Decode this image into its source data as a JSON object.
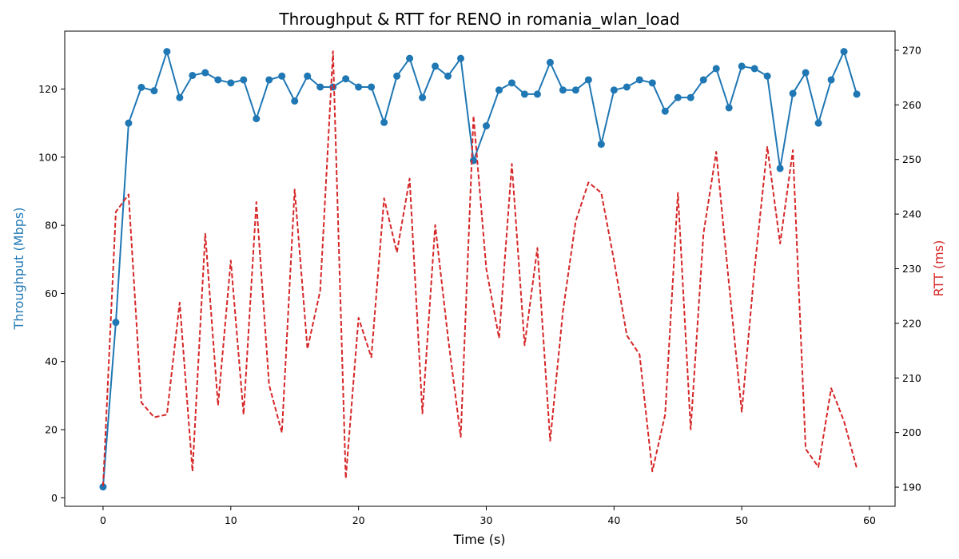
{
  "chart_data": {
    "type": "line",
    "title": "Throughput & RTT for RENO in romania_wlan_load",
    "xlabel": "Time (s)",
    "ylabel_left": "Throughput (Mbps)",
    "ylabel_right": "RTT (ms)",
    "xlim": [
      -3,
      62
    ],
    "ylim_left": [
      -2.5,
      137
    ],
    "ylim_right": [
      186.5,
      273.5
    ],
    "x_ticks": [
      0,
      10,
      20,
      30,
      40,
      50,
      60
    ],
    "y_ticks_left": [
      0,
      20,
      40,
      60,
      80,
      100,
      120
    ],
    "y_ticks_right": [
      190,
      200,
      210,
      220,
      230,
      240,
      250,
      260,
      270
    ],
    "grid": false,
    "colors": {
      "throughput": "#1f77b4",
      "rtt": "#d62728",
      "axis_label_left": "#1f77b4",
      "axis_label_right": "#d62728"
    },
    "x": [
      0,
      1,
      2,
      3,
      4,
      5,
      6,
      7,
      8,
      9,
      10,
      11,
      12,
      13,
      14,
      15,
      16,
      17,
      18,
      19,
      20,
      21,
      22,
      23,
      24,
      25,
      26,
      27,
      28,
      29,
      30,
      31,
      32,
      33,
      34,
      35,
      36,
      37,
      38,
      39,
      40,
      41,
      42,
      43,
      44,
      45,
      46,
      47,
      48,
      49,
      50,
      51,
      52,
      53,
      54,
      55,
      56,
      57,
      58,
      59
    ],
    "series": [
      {
        "name": "Throughput",
        "axis": "left",
        "style": "solid-marker",
        "values": [
          3.2,
          51.5,
          110.0,
          120.5,
          119.5,
          131.0,
          117.5,
          124.0,
          124.8,
          122.7,
          121.8,
          122.7,
          111.3,
          122.7,
          123.8,
          116.5,
          123.8,
          120.6,
          120.6,
          123.0,
          120.6,
          120.6,
          110.2,
          123.8,
          129.0,
          117.5,
          126.7,
          123.8,
          129.0,
          99.0,
          109.2,
          119.7,
          121.8,
          118.5,
          118.5,
          127.8,
          119.7,
          119.7,
          122.7,
          103.8,
          119.7,
          120.6,
          122.7,
          121.8,
          113.5,
          117.5,
          117.5,
          122.7,
          126.0,
          114.5,
          126.7,
          126.0,
          123.8,
          96.7,
          118.7,
          124.8,
          110.0,
          122.7,
          131.0,
          118.5
        ]
      },
      {
        "name": "RTT",
        "axis": "right",
        "style": "dashed",
        "values": [
          190.2,
          240.4,
          243.6,
          205.5,
          202.8,
          203.3,
          223.8,
          192.9,
          236.4,
          205.0,
          231.5,
          203.3,
          242.2,
          208.7,
          200.0,
          244.5,
          215.3,
          226.0,
          269.8,
          191.6,
          221.0,
          213.8,
          242.9,
          233.0,
          246.5,
          203.5,
          238.0,
          217.5,
          199.2,
          258.0,
          230.0,
          217.3,
          249.2,
          216.0,
          233.8,
          198.5,
          222.2,
          238.7,
          245.8,
          243.9,
          231.5,
          217.8,
          214.3,
          192.9,
          203.3,
          243.9,
          200.6,
          236.4,
          251.4,
          227.2,
          203.8,
          229.9,
          252.3,
          234.6,
          251.7,
          197.0,
          193.7,
          208.1,
          202.1,
          193.5
        ]
      }
    ]
  }
}
